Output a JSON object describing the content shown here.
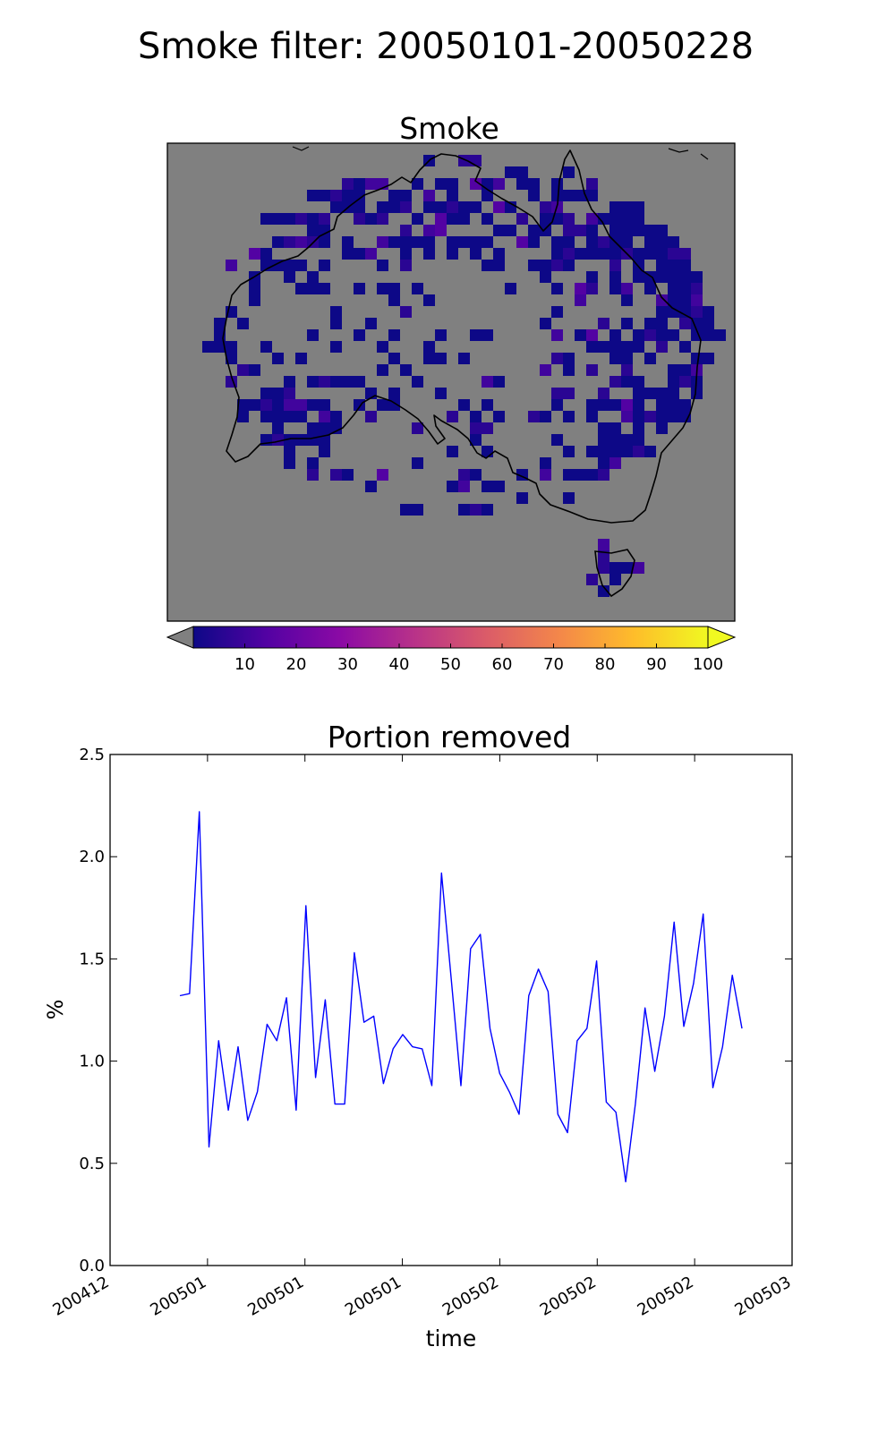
{
  "figure": {
    "title": "Smoke filter: 20050101-20050228"
  },
  "chart_data": [
    {
      "type": "heatmap",
      "title": "Smoke",
      "background_color": "#808080",
      "colormap": "plasma",
      "colorbar": {
        "ticks": [
          10,
          20,
          30,
          40,
          50,
          60,
          70,
          80,
          90,
          100
        ],
        "range": [
          0,
          100
        ],
        "extend": "both",
        "under_color": "#808080",
        "stops": [
          "#0d0887",
          "#5302a3",
          "#8b0aa5",
          "#b83289",
          "#db5c68",
          "#f48849",
          "#febd2a",
          "#f0f921"
        ]
      },
      "description_values": "Smoke-flagged grid cells over Australia, mostly values 1–25 (dark blue to indigo), denser in the east and southwest."
    },
    {
      "type": "line",
      "title": "Portion removed",
      "xlabel": "time",
      "ylabel": "%",
      "ylim": [
        0,
        2.5
      ],
      "yticks": [
        "0.0",
        "0.5",
        "1.0",
        "1.5",
        "2.0",
        "2.5"
      ],
      "xticks": [
        "200412",
        "200501",
        "200501",
        "200501",
        "200502",
        "200502",
        "200502",
        "200503"
      ],
      "line_color": "#0000ff",
      "series": [
        {
          "values": [
            1.32,
            1.33,
            2.22,
            0.58,
            1.1,
            0.76,
            1.07,
            0.71,
            0.85,
            1.18,
            1.1,
            1.31,
            0.76,
            1.76,
            0.92,
            1.3,
            0.79,
            0.79,
            1.53,
            1.19,
            1.22,
            0.89,
            1.06,
            1.13,
            1.07,
            1.06,
            0.88,
            1.92,
            1.4,
            0.88,
            1.55,
            1.62,
            1.16,
            0.94,
            0.85,
            0.74,
            1.32,
            1.45,
            1.34,
            0.74,
            0.65,
            1.1,
            1.16,
            1.49,
            0.8,
            0.75,
            0.41,
            0.79,
            1.26,
            0.95,
            1.22,
            1.68,
            1.17,
            1.38,
            1.72,
            0.87,
            1.07,
            1.42,
            1.16
          ]
        }
      ]
    }
  ]
}
